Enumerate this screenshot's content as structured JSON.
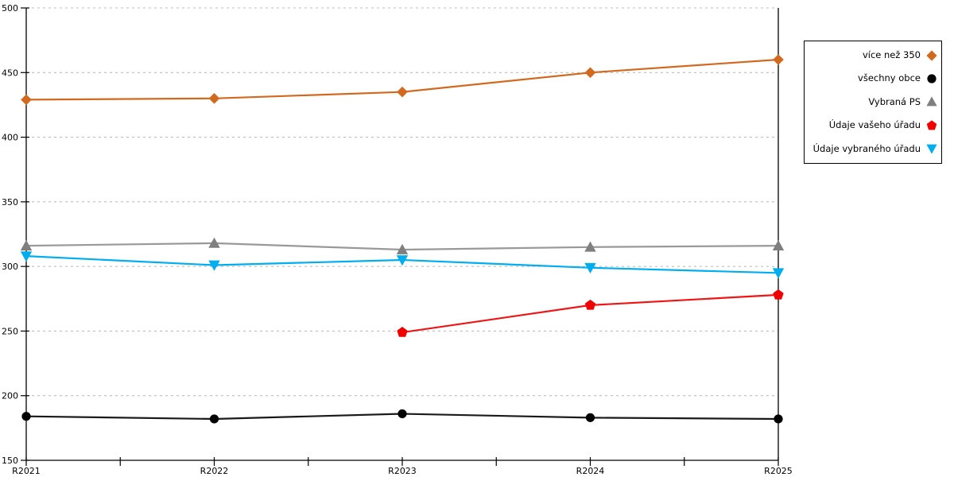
{
  "chart_data": {
    "type": "line",
    "title": "",
    "xlabel": "",
    "ylabel": "",
    "categories": [
      "R2021",
      "R2022",
      "R2023",
      "R2024",
      "R2025"
    ],
    "ylim": [
      150,
      500
    ],
    "yticks": [
      150,
      200,
      250,
      300,
      350,
      400,
      450,
      500
    ],
    "grid": "horizontal-dotted",
    "legend_position": "outside-top-right",
    "legend_marker_side": "right-of-label",
    "series": [
      {
        "key": "vice-nez-350",
        "name": "více než 350",
        "marker": "diamond",
        "color": "#d2691e",
        "line_color": "#d2691e",
        "values": [
          429,
          430,
          435,
          450,
          460
        ]
      },
      {
        "key": "vsechny-obce",
        "name": "všechny obce",
        "marker": "circle",
        "color": "#000000",
        "line_color": "#1a1a1a",
        "values": [
          184,
          182,
          186,
          183,
          182
        ]
      },
      {
        "key": "vybrana-ps",
        "name": "Vybraná PS",
        "marker": "triangle-up",
        "color": "#7f7f7f",
        "line_color": "#999999",
        "values": [
          316,
          318,
          313,
          315,
          316
        ]
      },
      {
        "key": "udaje-vaseho-uradu",
        "name": "Údaje vašeho úřadu",
        "marker": "pentagon",
        "color": "#f00000",
        "line_color": "#f01414",
        "values": [
          null,
          null,
          249,
          270,
          278
        ]
      },
      {
        "key": "udaje-vybraneho-uradu",
        "name": "Údaje vybraného úřadu",
        "marker": "triangle-down",
        "color": "#00aeef",
        "line_color": "#00aeef",
        "values": [
          308,
          301,
          305,
          299,
          295
        ]
      }
    ],
    "colors": {
      "background": "#ffffff",
      "axis": "#000000",
      "grid": "#bdbdbd"
    }
  }
}
